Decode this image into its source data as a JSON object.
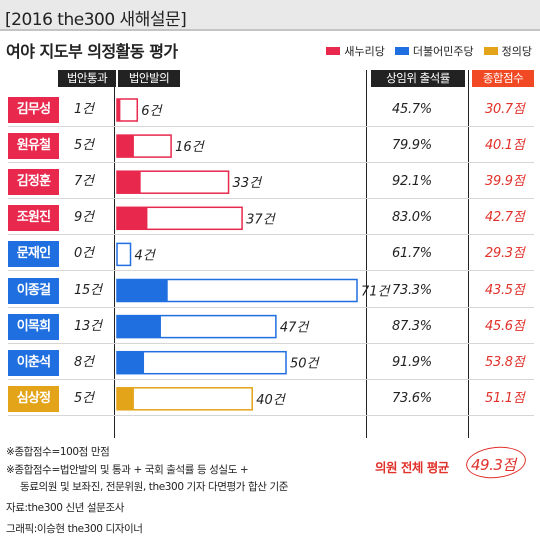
{
  "header": {
    "title": "[2016 the300 새해설문]"
  },
  "subtitle": "여야 지도부 의정활동 평가",
  "legend": [
    {
      "label": "새누리당",
      "color": "#e8284d"
    },
    {
      "label": "더불어민주당",
      "color": "#1f6fe0"
    },
    {
      "label": "정의당",
      "color": "#e3a41a"
    }
  ],
  "columns": {
    "passed": "법안통과",
    "proposed": "법안발의",
    "attendance": "상임위 출석률",
    "score": "종합점수"
  },
  "chart_data": {
    "type": "bar",
    "title": "여야 지도부 의정활동 평가",
    "series_meaning": "법안발의 (total proposed) with 법안통과 (passed) as filled portion",
    "rows": [
      {
        "name": "김무성",
        "party": "새누리당",
        "passed": 1,
        "passed_label": "1건",
        "proposed": 6,
        "proposed_label": "6건",
        "attendance": "45.7%",
        "score": "30.7점"
      },
      {
        "name": "원유철",
        "party": "새누리당",
        "passed": 5,
        "passed_label": "5건",
        "proposed": 16,
        "proposed_label": "16건",
        "attendance": "79.9%",
        "score": "40.1점"
      },
      {
        "name": "김정훈",
        "party": "새누리당",
        "passed": 7,
        "passed_label": "7건",
        "proposed": 33,
        "proposed_label": "33건",
        "attendance": "92.1%",
        "score": "39.9점"
      },
      {
        "name": "조원진",
        "party": "새누리당",
        "passed": 9,
        "passed_label": "9건",
        "proposed": 37,
        "proposed_label": "37건",
        "attendance": "83.0%",
        "score": "42.7점"
      },
      {
        "name": "문재인",
        "party": "더불어민주당",
        "passed": 0,
        "passed_label": "0건",
        "proposed": 4,
        "proposed_label": "4건",
        "attendance": "61.7%",
        "score": "29.3점"
      },
      {
        "name": "이종걸",
        "party": "더불어민주당",
        "passed": 15,
        "passed_label": "15건",
        "proposed": 71,
        "proposed_label": "71건",
        "attendance": "73.3%",
        "score": "43.5점"
      },
      {
        "name": "이목희",
        "party": "더불어민주당",
        "passed": 13,
        "passed_label": "13건",
        "proposed": 47,
        "proposed_label": "47건",
        "attendance": "87.3%",
        "score": "45.6점"
      },
      {
        "name": "이춘석",
        "party": "더불어민주당",
        "passed": 8,
        "passed_label": "8건",
        "proposed": 50,
        "proposed_label": "50건",
        "attendance": "91.9%",
        "score": "53.8점"
      },
      {
        "name": "심상정",
        "party": "정의당",
        "passed": 5,
        "passed_label": "5건",
        "proposed": 40,
        "proposed_label": "40건",
        "attendance": "73.6%",
        "score": "51.1점"
      }
    ],
    "xlim": [
      0,
      71
    ]
  },
  "average": {
    "label": "의원 전체 평균",
    "value": "49.3점"
  },
  "footnotes": [
    "※종합점수=100점 만점",
    "※종합점수=법안발의 및 통과 + 국회 출석률 등 성실도 +",
    "동료의원 및 보좌진, 전문위원, the300 기자 다면평가 합산 기준",
    "자료:the300 신년 설문조사",
    "그래픽:이승현 the300 디자이너"
  ]
}
